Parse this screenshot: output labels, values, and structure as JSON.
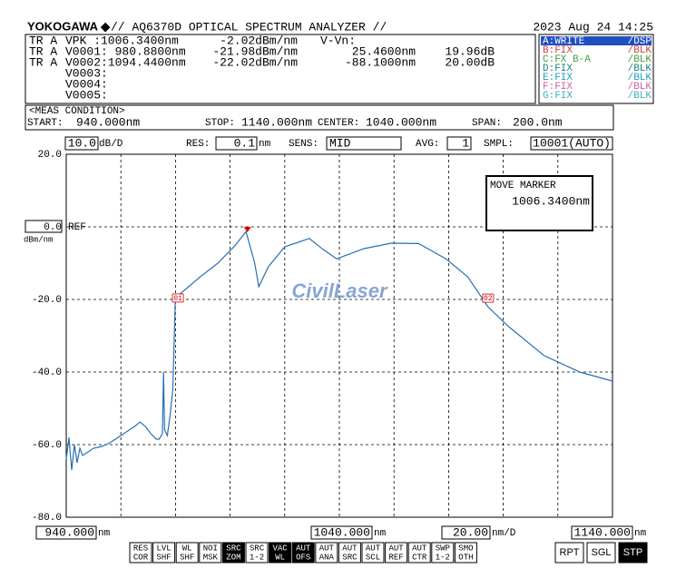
{
  "header": {
    "brand": "YOKOGAWA ◆",
    "title": "// AQ6370D OPTICAL SPECTRUM ANALYZER //",
    "datetime": "2023 Aug 24 14:25"
  },
  "markers_table": [
    {
      "trace": "TR A",
      "mk": "VPK  :1006.3400nm",
      "level": "-2.02dBm/nm",
      "delta": "V-Vn:"
    },
    {
      "trace": "TR A",
      "mk": "V0001: 980.8800nm",
      "level": "-21.98dBm/nm",
      "dwl": "25.4600nm",
      "dlv": "19.96dB"
    },
    {
      "trace": "TR A",
      "mk": "V0002:1094.4400nm",
      "level": "-22.02dBm/nm",
      "dwl": "-88.1000nm",
      "dlv": "20.00dB"
    },
    {
      "mk": "V0003:"
    },
    {
      "mk": "V0004:"
    },
    {
      "mk": "V0005:"
    }
  ],
  "traces": [
    {
      "name": "A:WRITE",
      "mode": "/DSP",
      "color": "#ffffff",
      "active": true
    },
    {
      "name": "B:FIX",
      "mode": "/BLK",
      "color": "#d04040"
    },
    {
      "name": "C:FX B-A",
      "mode": "/BLK",
      "color": "#40a040"
    },
    {
      "name": "D:FIX",
      "mode": "/BLK",
      "color": "#208080"
    },
    {
      "name": "E:FIX",
      "mode": "/BLK",
      "color": "#20a0c0"
    },
    {
      "name": "F:FIX",
      "mode": "/BLK",
      "color": "#d060a0"
    },
    {
      "name": "G:FIX",
      "mode": "/BLK",
      "color": "#40b0c0"
    }
  ],
  "meas_condition": {
    "title": "<MEAS CONDITION>",
    "start_label": "START:",
    "start": "940.000nm",
    "stop_label": "STOP:",
    "stop": "1140.000nm",
    "center_label": "CENTER:",
    "center": "1040.000nm",
    "span_label": "SPAN:",
    "span": "200.0nm"
  },
  "settings": {
    "scale": "10.0",
    "scale_unit": "dB/D",
    "res_label": "RES:",
    "res": "0.1",
    "res_unit": "nm",
    "sens_label": "SENS:",
    "sens": "MID",
    "avg_label": "AVG:",
    "avg": "1",
    "smpl_label": "SMPL:",
    "smpl": "10001(AUTO)"
  },
  "chart_data": {
    "type": "line",
    "color": "#2a6fb0",
    "x": [
      940,
      941,
      942,
      943,
      944,
      945,
      946,
      948,
      950,
      953,
      956,
      959,
      962,
      965,
      967,
      969,
      971,
      973,
      974,
      975.2,
      975.6,
      976,
      977,
      978,
      979,
      979.9,
      981.2,
      984,
      989,
      995.5,
      1002,
      1005.8,
      1009,
      1010.5,
      1014,
      1020,
      1029,
      1034,
      1039,
      1049,
      1059,
      1069,
      1079,
      1087,
      1094.4,
      1102,
      1115,
      1128,
      1140
    ],
    "values": [
      -64,
      -58,
      -67,
      -60,
      -65,
      -61,
      -63,
      -62,
      -61,
      -60.5,
      -59.5,
      -58,
      -56.5,
      -55,
      -53.8,
      -55,
      -57,
      -58.5,
      -58.5,
      -57,
      -40,
      -56,
      -57.5,
      -52,
      -45,
      -21,
      -18.8,
      -17,
      -13.8,
      -10,
      -5,
      -1.3,
      -10,
      -16.5,
      -11,
      -5.5,
      -3.2,
      -6.2,
      -8.8,
      -6,
      -4.5,
      -4.6,
      -8.8,
      -13.8,
      -22,
      -27.5,
      -35.5,
      -40,
      -42.5
    ],
    "xlim": [
      940,
      1140
    ],
    "xticks": [
      940,
      960,
      980,
      1000,
      1020,
      1040,
      1060,
      1080,
      1100,
      1120,
      1140
    ],
    "ylim": [
      -80,
      20
    ],
    "yticks": [
      {
        "value": 20,
        "label": "20.0"
      },
      {
        "value": 0,
        "label": "0.0"
      },
      {
        "value": -20,
        "label": "-20.0"
      },
      {
        "value": -40,
        "label": "-40.0"
      },
      {
        "value": -60,
        "label": "-60.0"
      },
      {
        "value": -80,
        "label": "-80.0"
      }
    ],
    "ref_label": "REF",
    "y_unit": "dBm/nm",
    "grid": true,
    "markers": [
      {
        "x": 1006.34,
        "y": -2.02
      },
      {
        "x": 980.88,
        "y": -21.98,
        "label": "01"
      },
      {
        "x": 1094.44,
        "y": -22.02,
        "label": "02"
      }
    ],
    "move_marker": {
      "title": "MOVE MARKER",
      "value": "1006.3400nm"
    },
    "watermark": "CivilLaser"
  },
  "bottom": {
    "start": "940.000",
    "start_unit": "nm",
    "center": "1040.000",
    "center_unit": "nm",
    "span": "20.00",
    "span_unit": "nm/D",
    "stop": "1140.000",
    "stop_unit": "nm"
  },
  "buttons": [
    [
      "RES",
      "COR"
    ],
    [
      "LVL",
      "SHF"
    ],
    [
      "WL",
      "SHF"
    ],
    [
      "NOI",
      "MSK"
    ],
    [
      "SRC",
      "ZOM",
      true
    ],
    [
      "SRC",
      "1-2"
    ],
    [
      "VAC",
      "WL",
      true
    ],
    [
      "AUT",
      "OFS",
      true
    ],
    [
      "AUT",
      "ANA"
    ],
    [
      "AUT",
      "SRC"
    ],
    [
      "AUT",
      "SCL"
    ],
    [
      "AUT",
      "REF"
    ],
    [
      "AUT",
      "CTR"
    ],
    [
      "SWP",
      "1-2"
    ],
    [
      "SMO",
      "OTH"
    ]
  ],
  "right_buttons": [
    {
      "label": "RPT"
    },
    {
      "label": "SGL"
    },
    {
      "label": "STP",
      "active": true
    }
  ]
}
